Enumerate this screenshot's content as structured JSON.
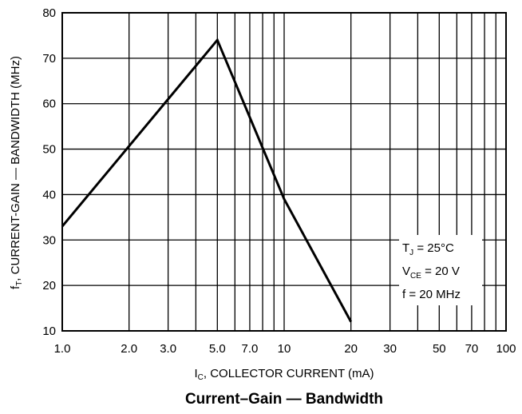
{
  "chart_data": {
    "type": "line",
    "x_scale": "log",
    "x_tick_labels": [
      "1.0",
      "2.0",
      "3.0",
      "5.0",
      "7.0",
      "10",
      "20",
      "30",
      "50",
      "70",
      "100"
    ],
    "x_tick_values": [
      1,
      2,
      3,
      5,
      7,
      10,
      20,
      30,
      50,
      70,
      100
    ],
    "y_tick_labels": [
      "10",
      "20",
      "30",
      "40",
      "50",
      "60",
      "70",
      "80"
    ],
    "y_tick_values": [
      10,
      20,
      30,
      40,
      50,
      60,
      70,
      80
    ],
    "xlim": [
      1,
      100
    ],
    "ylim": [
      10,
      80
    ],
    "grid": true,
    "x": [
      1.0,
      5.0,
      10,
      20
    ],
    "y": [
      33,
      74,
      39,
      12
    ],
    "xlabel": {
      "main": "I",
      "sub": "C",
      "rest": ", COLLECTOR CURRENT (mA)"
    },
    "ylabel": {
      "main": "f",
      "sub": "T",
      "rest": ", CURRENT-GAIN — BANDWIDTH (MHz)"
    },
    "caption": "Current–Gain — Bandwidth",
    "annotation": {
      "line1": {
        "main": "T",
        "sub": "J",
        "rest": " = 25°C"
      },
      "line2": {
        "main": "V",
        "sub": "CE",
        "rest": " = 20 V"
      },
      "line3": "f = 20 MHz"
    }
  }
}
